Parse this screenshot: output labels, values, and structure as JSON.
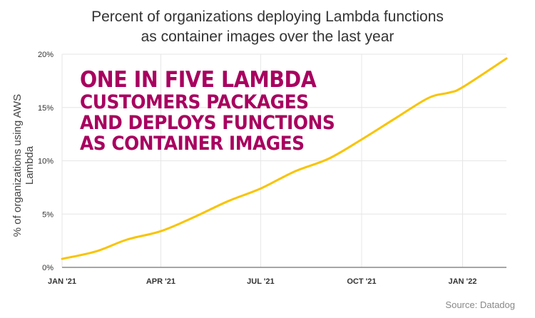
{
  "chart_data": {
    "type": "line",
    "title": "Percent of organizations deploying Lambda functions as container images over the last year",
    "title_lines": [
      "Percent of organizations deploying Lambda functions",
      "as container images over the last year"
    ],
    "ylabel": "% of organizations using AWS Lambda",
    "xlabel": "",
    "ylim": [
      0,
      20
    ],
    "yticks": [
      "0%",
      "5%",
      "10%",
      "15%",
      "20%"
    ],
    "ytick_values": [
      0,
      5,
      10,
      15,
      20
    ],
    "xticks": [
      "JAN '21",
      "APR '21",
      "JUL '21",
      "OCT '21",
      "JAN '22"
    ],
    "xtick_dates": [
      "2021-01-01",
      "2021-04-01",
      "2021-07-01",
      "2021-10-01",
      "2022-01-01"
    ],
    "xlim": [
      "2021-01-01",
      "2022-02-10"
    ],
    "grid": true,
    "line_color": "#f9c300",
    "series": [
      {
        "x": [
          "2021-01-01",
          "2021-02-01",
          "2021-03-01",
          "2021-04-01",
          "2021-05-01",
          "2021-06-01",
          "2021-07-01",
          "2021-08-01",
          "2021-09-01",
          "2021-10-01",
          "2021-11-01",
          "2021-12-01",
          "2021-12-20",
          "2022-01-01",
          "2022-02-10"
        ],
        "values": [
          0.8,
          1.5,
          2.6,
          3.4,
          4.7,
          6.2,
          7.4,
          9.0,
          10.2,
          12.0,
          14.0,
          15.9,
          16.4,
          16.9,
          19.6
        ]
      }
    ],
    "annotation": [
      "ONE IN FIVE LAMBDA",
      "CUSTOMERS PACKAGES",
      "AND DEPLOYS FUNCTIONS",
      "AS CONTAINER IMAGES"
    ],
    "annotation_color": "#a8005f",
    "source": "Source: Datadog"
  }
}
